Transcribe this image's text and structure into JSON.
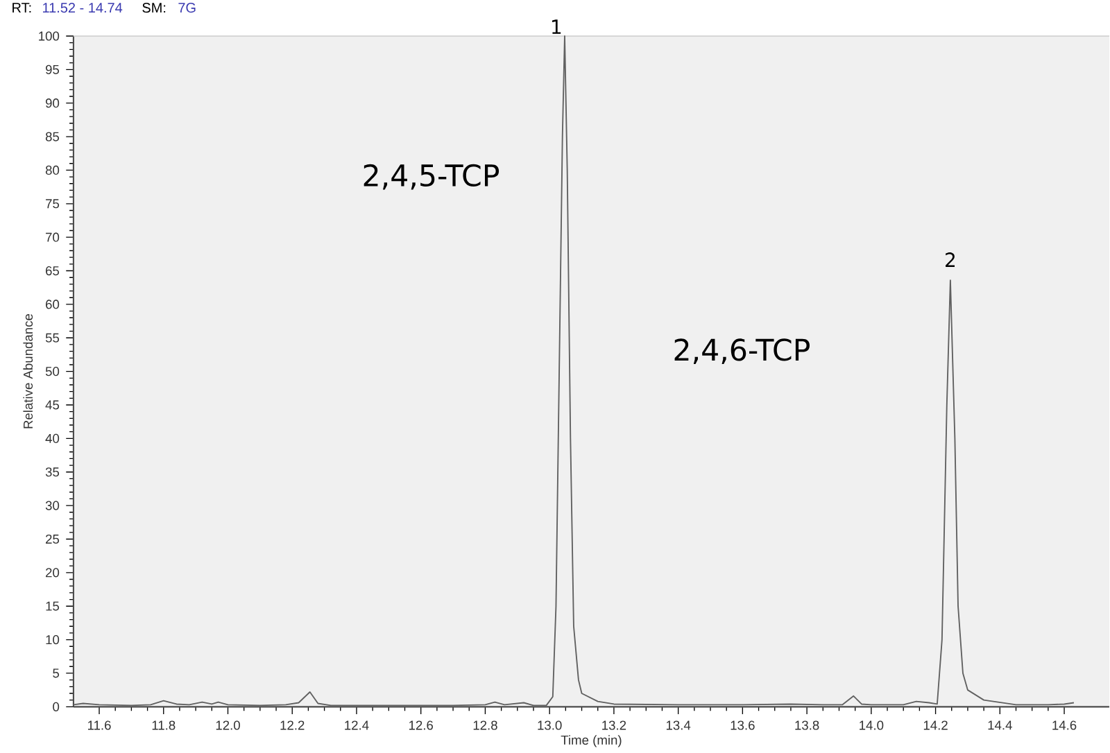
{
  "chart_data": {
    "type": "line",
    "xlabel": "Time (min)",
    "ylabel": "Relative Abundance",
    "annotations": [
      "RT:",
      "11.52 - 14.74",
      "SM:",
      "7G",
      "2,4,5-TCP",
      "2,4,6-TCP",
      {
        "text": "1",
        "x": 13.047,
        "y": 100
      },
      {
        "text": "2",
        "x": 14.246,
        "y": 63.6
      }
    ],
    "xlim": [
      11.52,
      14.74
    ],
    "ylim": [
      0,
      100
    ],
    "xticks": [
      {
        "value": 11.6,
        "label": "11.6"
      },
      {
        "value": 11.8,
        "label": "11.8"
      },
      {
        "value": 12.0,
        "label": "12.0"
      },
      {
        "value": 12.2,
        "label": "12.2"
      },
      {
        "value": 12.4,
        "label": "12.4"
      },
      {
        "value": 12.6,
        "label": "12.6"
      },
      {
        "value": 12.8,
        "label": "12.8"
      },
      {
        "value": 13.0,
        "label": "13.0"
      },
      {
        "value": 13.2,
        "label": "13.2"
      },
      {
        "value": 13.4,
        "label": "13.4"
      },
      {
        "value": 13.6,
        "label": "13.6"
      },
      {
        "value": 13.8,
        "label": "13.8"
      },
      {
        "value": 14.0,
        "label": "14.0"
      },
      {
        "value": 14.2,
        "label": "14.2"
      },
      {
        "value": 14.4,
        "label": "14.4"
      },
      {
        "value": 14.6,
        "label": "14.6"
      }
    ],
    "yticks": [
      0,
      5,
      10,
      15,
      20,
      25,
      30,
      35,
      40,
      45,
      50,
      55,
      60,
      65,
      70,
      75,
      80,
      85,
      90,
      95,
      100
    ],
    "grid": false,
    "marker": "none",
    "line_style": "solid",
    "x": [
      11.52,
      11.55,
      11.6,
      11.7,
      11.76,
      11.8,
      11.84,
      11.88,
      11.92,
      11.95,
      11.97,
      12.0,
      12.1,
      12.18,
      12.22,
      12.255,
      12.28,
      12.32,
      12.5,
      12.7,
      12.8,
      12.83,
      12.86,
      12.92,
      12.95,
      12.99,
      13.01,
      13.02,
      13.03,
      13.04,
      13.047,
      13.055,
      13.065,
      13.075,
      13.09,
      13.1,
      13.15,
      13.2,
      13.4,
      13.6,
      13.75,
      13.85,
      13.91,
      13.945,
      13.97,
      14.0,
      14.1,
      14.14,
      14.18,
      14.205,
      14.22,
      14.235,
      14.246,
      14.26,
      14.27,
      14.285,
      14.3,
      14.35,
      14.45,
      14.55,
      14.6,
      14.63
    ],
    "series": [
      {
        "color": "#606060",
        "values": [
          0.3,
          0.5,
          0.3,
          0.2,
          0.3,
          0.9,
          0.4,
          0.3,
          0.7,
          0.4,
          0.7,
          0.3,
          0.2,
          0.3,
          0.6,
          2.2,
          0.5,
          0.2,
          0.2,
          0.2,
          0.3,
          0.7,
          0.3,
          0.6,
          0.2,
          0.2,
          1.5,
          15,
          50,
          85,
          100,
          80,
          40,
          12,
          4,
          2,
          0.8,
          0.4,
          0.3,
          0.3,
          0.4,
          0.3,
          0.3,
          1.6,
          0.4,
          0.3,
          0.3,
          0.8,
          0.6,
          0.4,
          10,
          45,
          63.6,
          40,
          15,
          5,
          2.5,
          1.0,
          0.3,
          0.3,
          0.4,
          0.6
        ]
      }
    ]
  }
}
